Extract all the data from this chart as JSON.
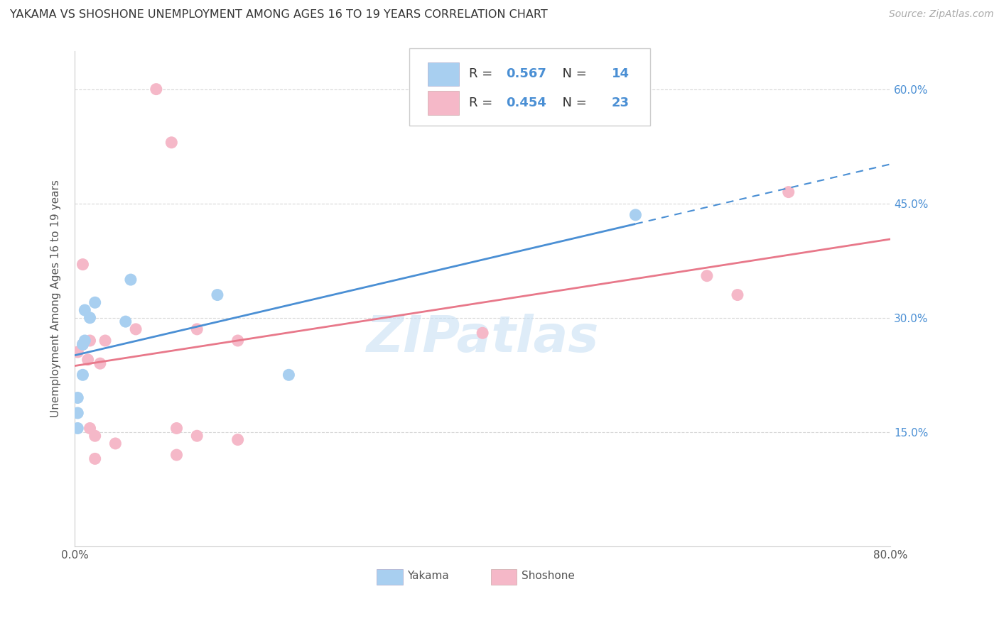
{
  "title": "YAKAMA VS SHOSHONE UNEMPLOYMENT AMONG AGES 16 TO 19 YEARS CORRELATION CHART",
  "source": "Source: ZipAtlas.com",
  "ylabel": "Unemployment Among Ages 16 to 19 years",
  "xlim": [
    0.0,
    0.8
  ],
  "ylim": [
    0.0,
    0.65
  ],
  "ytick_positions": [
    0.15,
    0.3,
    0.45,
    0.6
  ],
  "ytick_labels_right": [
    "15.0%",
    "30.0%",
    "45.0%",
    "60.0%"
  ],
  "background_color": "#ffffff",
  "grid_color": "#d8d8d8",
  "watermark": "ZIPatlas",
  "yakama_color": "#a8cff0",
  "shoshone_color": "#f5b8c8",
  "yakama_line_color": "#4a8fd4",
  "shoshone_line_color": "#e8788a",
  "yakama_R": 0.567,
  "yakama_N": 14,
  "shoshone_R": 0.454,
  "shoshone_N": 23,
  "yakama_x": [
    0.003,
    0.003,
    0.003,
    0.008,
    0.01,
    0.01,
    0.015,
    0.02,
    0.05,
    0.055,
    0.14,
    0.21,
    0.55,
    0.008
  ],
  "yakama_y": [
    0.155,
    0.175,
    0.195,
    0.265,
    0.31,
    0.27,
    0.3,
    0.32,
    0.295,
    0.35,
    0.33,
    0.225,
    0.435,
    0.225
  ],
  "shoshone_x": [
    0.003,
    0.008,
    0.008,
    0.013,
    0.015,
    0.015,
    0.02,
    0.02,
    0.025,
    0.03,
    0.04,
    0.06,
    0.1,
    0.1,
    0.12,
    0.12,
    0.16,
    0.16,
    0.08,
    0.4,
    0.62,
    0.65,
    0.7
  ],
  "shoshone_y": [
    0.255,
    0.37,
    0.265,
    0.245,
    0.27,
    0.155,
    0.115,
    0.145,
    0.24,
    0.27,
    0.135,
    0.285,
    0.155,
    0.12,
    0.145,
    0.285,
    0.14,
    0.27,
    0.6,
    0.28,
    0.355,
    0.33,
    0.465
  ],
  "shoshone_outlier_x": [
    0.095
  ],
  "shoshone_outlier_y": [
    0.53
  ],
  "yakama_line_solid_end": 0.55,
  "yakama_line_dashed_start": 0.55,
  "yakama_line_start": 0.0,
  "yakama_line_end": 0.8,
  "shoshone_line_start": 0.0,
  "shoshone_line_end": 0.8,
  "title_fontsize": 11.5,
  "source_fontsize": 10,
  "axis_tick_fontsize": 11,
  "ylabel_fontsize": 11,
  "legend_fontsize": 13
}
